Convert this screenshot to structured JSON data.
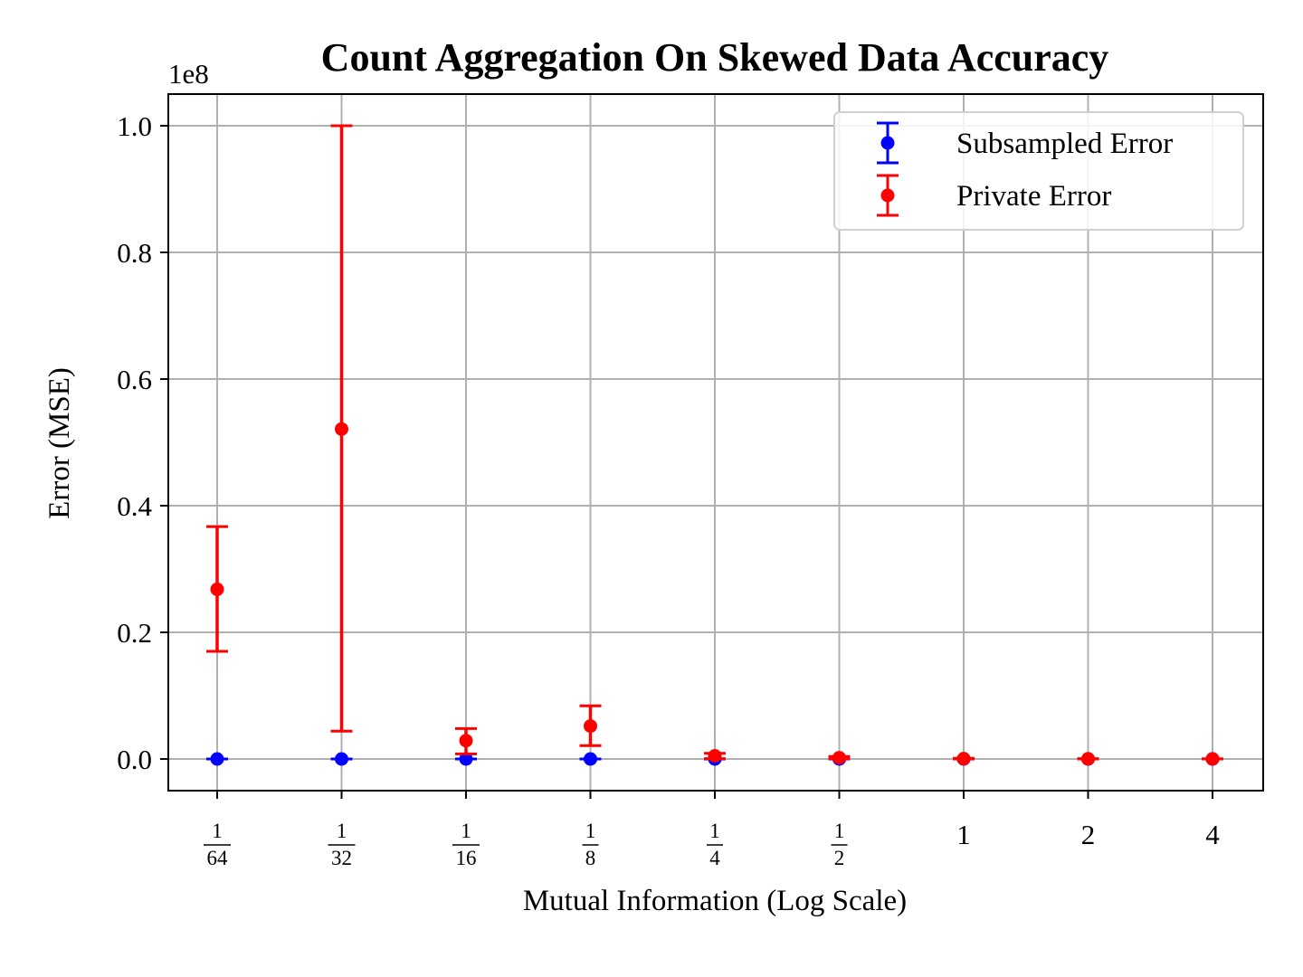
{
  "chart_data": {
    "type": "scatter",
    "title": "Count Aggregation On Skewed Data Accuracy",
    "xlabel": "Mutual Information (Log Scale)",
    "ylabel": "Error (MSE)",
    "y_offset_label": "1e8",
    "x_scale": "log2",
    "x_ticks": [
      {
        "value": 0.015625,
        "num": "1",
        "den": "64"
      },
      {
        "value": 0.03125,
        "num": "1",
        "den": "32"
      },
      {
        "value": 0.0625,
        "num": "1",
        "den": "16"
      },
      {
        "value": 0.125,
        "num": "1",
        "den": "8"
      },
      {
        "value": 0.25,
        "num": "1",
        "den": "4"
      },
      {
        "value": 0.5,
        "num": "1",
        "den": "2"
      },
      {
        "value": 1,
        "label": "1"
      },
      {
        "value": 2,
        "label": "2"
      },
      {
        "value": 4,
        "label": "4"
      }
    ],
    "y_ticks": [
      "0.0",
      "0.2",
      "0.4",
      "0.6",
      "0.8",
      "1.0"
    ],
    "ylim": [
      -0.05,
      1.05
    ],
    "grid": true,
    "legend_position": "top-right",
    "series": [
      {
        "name": "Subsampled Error",
        "color": "#0000ff",
        "x": [
          0.015625,
          0.03125,
          0.0625,
          0.125,
          0.25,
          0.5,
          1,
          2,
          4
        ],
        "y": [
          0,
          0,
          0,
          0,
          0,
          0,
          0,
          0,
          0
        ],
        "err_low": [
          0,
          0,
          0,
          0,
          0,
          0,
          0,
          0,
          0
        ],
        "err_high": [
          0,
          0,
          0,
          0,
          0,
          0,
          0,
          0,
          0
        ]
      },
      {
        "name": "Private Error",
        "color": "#ff0000",
        "x": [
          0.015625,
          0.03125,
          0.0625,
          0.125,
          0.25,
          0.5,
          1,
          2,
          4
        ],
        "y": [
          0.268,
          0.521,
          0.029,
          0.052,
          0.005,
          0.002,
          0.0005,
          0.0003,
          0.0001
        ],
        "err_low": [
          0.17,
          0.044,
          0.008,
          0.021,
          0.0005,
          0.0003,
          0,
          0,
          0
        ],
        "err_high": [
          0.367,
          1.0,
          0.048,
          0.084,
          0.009,
          0.004,
          0.001,
          0.0006,
          0.0003
        ]
      }
    ]
  }
}
